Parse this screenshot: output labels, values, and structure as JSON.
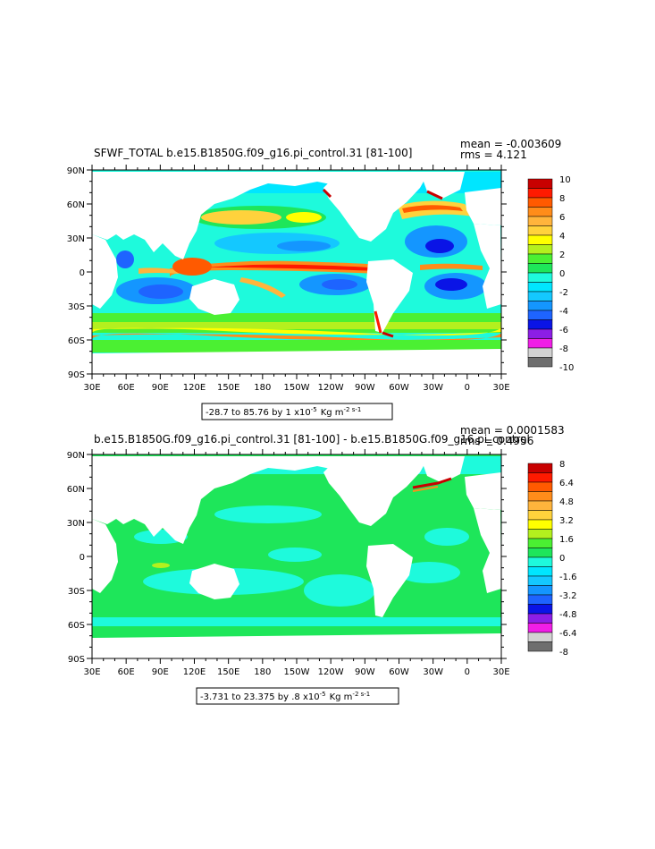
{
  "colors": {
    "white": "#ffffff",
    "red_dark": "#c80000",
    "red": "#ff1a00",
    "orange_red": "#ff5a00",
    "orange": "#ff8c1a",
    "light_orange": "#ffb43c",
    "gold": "#ffd23c",
    "yellow": "#ffff00",
    "yellow_green": "#b4f01e",
    "green": "#4bf032",
    "bright_green": "#1ee65a",
    "aqua": "#1efadc",
    "cyan": "#00e6ff",
    "light_blue": "#14c8ff",
    "sky": "#1496ff",
    "blue": "#1e64ff",
    "deep_blue": "#0a14e6",
    "purple": "#8c1ee6",
    "magenta": "#f01ee6",
    "light_gray": "#d2d2d2",
    "gray": "#6e6e6e"
  },
  "panel1": {
    "title": "SFWF_TOTAL  b.e15.B1850G.f09_g16.pi_control.31  [81-100]",
    "mean": "mean = -0.003609",
    "rms": "rms = 4.121",
    "contour_info": "-28.7 to 85.76 by 1 x10",
    "contour_exp": "-5",
    "contour_units": "Kg m",
    "contour_units_exp": "-2 s-1",
    "colorbar_labels": [
      "10",
      "8",
      "6",
      "4",
      "2",
      "0",
      "-2",
      "-4",
      "-6",
      "-8",
      "-10"
    ]
  },
  "panel2": {
    "title": "b.e15.B1850G.f09_g16.pi_control.31  [81-100]  -  b.e15.B1850G.f09_g16.pi_control",
    "mean": "mean = 0.0001583",
    "rms": "rms = 0.4956",
    "contour_info": "-3.731 to 23.375 by .8 x10",
    "contour_exp": "-5",
    "contour_units": "Kg m",
    "contour_units_exp": "-2 s-1",
    "colorbar_labels": [
      "8",
      "6.4",
      "4.8",
      "3.2",
      "1.6",
      "0",
      "-1.6",
      "-3.2",
      "-4.8",
      "-6.4",
      "-8"
    ]
  },
  "axes": {
    "lat_labels": [
      "90N",
      "60N",
      "30N",
      "0",
      "30S",
      "60S",
      "90S"
    ],
    "lon_labels": [
      "30E",
      "60E",
      "90E",
      "120E",
      "150E",
      "180",
      "150W",
      "120W",
      "90W",
      "60W",
      "30W",
      "0",
      "30E"
    ]
  }
}
